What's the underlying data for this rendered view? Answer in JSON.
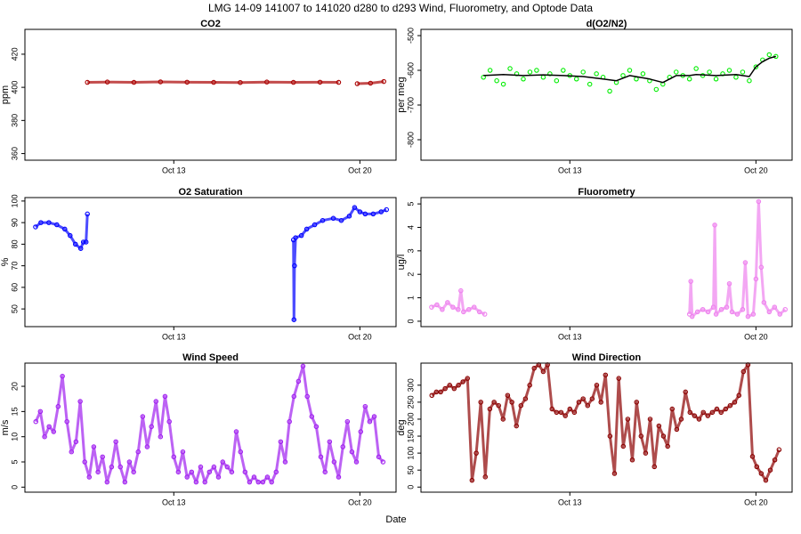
{
  "title": "LMG  14-09    141007 to 141020    d280 to d293   Wind, Fluorometry, and Optode Data",
  "x_label": "Date",
  "chart_data": [
    {
      "type": "scatter",
      "title": "CO2",
      "ylabel": "ppm",
      "xlim": [
        7.4,
        21.36
      ],
      "xticks": [
        {
          "value": 13,
          "label": "Oct 13"
        },
        {
          "value": 20,
          "label": "Oct 20"
        }
      ],
      "ylim": [
        356,
        435
      ],
      "yticks": [
        360,
        380,
        400,
        420
      ],
      "series": [
        {
          "color": "#aa0000",
          "style": "both",
          "x": [
            9.75,
            10.5,
            11.5,
            12.5,
            13.5,
            14.5,
            15.5,
            16.5,
            17.5,
            18.5,
            19.2,
            19.5,
            19.9,
            20.4,
            20.9
          ],
          "values": [
            403,
            403.2,
            403,
            403.3,
            403.1,
            403,
            402.9,
            403.2,
            403,
            403.1,
            403,
            null,
            402.2,
            402.5,
            403.5
          ]
        }
      ]
    },
    {
      "type": "scatter",
      "title": "d(O2/N2)",
      "ylabel": "per meg",
      "xlim": [
        7.4,
        21.36
      ],
      "xticks": [
        {
          "value": 13,
          "label": "Oct 13"
        },
        {
          "value": 20,
          "label": "Oct 20"
        }
      ],
      "ylim": [
        -859,
        -482
      ],
      "yticks": [
        -800,
        -700,
        -600,
        -500
      ],
      "series": [
        {
          "color": "#00ee00",
          "style": "points",
          "x": [
            9.75,
            10.0,
            10.25,
            10.5,
            10.75,
            11.0,
            11.25,
            11.5,
            11.75,
            12.0,
            12.25,
            12.5,
            12.75,
            13.0,
            13.25,
            13.5,
            13.75,
            14.0,
            14.25,
            14.5,
            14.75,
            15.0,
            15.25,
            15.5,
            15.75,
            16.0,
            16.25,
            16.5,
            16.75,
            17.0,
            17.25,
            17.5,
            17.75,
            18.0,
            18.25,
            18.5,
            18.75,
            19.0,
            19.25,
            19.5,
            19.75,
            20.0,
            20.25,
            20.5,
            20.75
          ],
          "values": [
            -620,
            -600,
            -630,
            -640,
            -595,
            -610,
            -625,
            -605,
            -600,
            -620,
            -610,
            -630,
            -600,
            -615,
            -625,
            -605,
            -640,
            -610,
            -620,
            -660,
            -635,
            -615,
            -600,
            -625,
            -610,
            -630,
            -655,
            -640,
            -620,
            -605,
            -615,
            -625,
            -595,
            -615,
            -605,
            -625,
            -610,
            -600,
            -620,
            -605,
            -630,
            -590,
            -570,
            -555,
            -560
          ]
        },
        {
          "color": "#000000",
          "style": "line",
          "x": [
            9.75,
            10.5,
            11.25,
            12.0,
            12.75,
            13.5,
            14.25,
            14.75,
            15.25,
            16.0,
            16.5,
            17.0,
            17.5,
            17.75,
            18.5,
            19.25,
            19.75,
            20.0,
            20.25,
            20.5,
            20.75
          ],
          "values": [
            -615,
            -612,
            -615,
            -613,
            -615,
            -618,
            -625,
            -630,
            -615,
            -625,
            -635,
            -615,
            -615,
            -612,
            -615,
            -612,
            -618,
            -590,
            -575,
            -565,
            -560
          ]
        }
      ]
    },
    {
      "type": "scatter",
      "title": "O2 Saturation",
      "ylabel": "%",
      "xlim": [
        7.4,
        21.36
      ],
      "xticks": [
        {
          "value": 13,
          "label": "Oct 13"
        },
        {
          "value": 20,
          "label": "Oct 20"
        }
      ],
      "ylim": [
        41.8,
        101.6
      ],
      "yticks": [
        50,
        60,
        70,
        80,
        90,
        100
      ],
      "series": [
        {
          "color": "#0000ff",
          "style": "both",
          "x": [
            7.8,
            8.0,
            8.3,
            8.6,
            8.9,
            9.1,
            9.3,
            9.5,
            9.6,
            9.7,
            9.75,
            13,
            17.5,
            17.52,
            17.54,
            17.58,
            17.8,
            18.0,
            18.3,
            18.6,
            19.0,
            19.3,
            19.6,
            19.8,
            20.0,
            20.2,
            20.5,
            20.8,
            21.0
          ],
          "values": [
            88,
            90,
            90,
            89,
            87,
            84,
            80,
            78,
            81,
            81,
            94,
            null,
            82,
            45,
            70,
            83,
            84,
            87,
            89,
            91,
            92,
            91,
            93,
            97,
            95,
            94,
            94,
            95,
            96
          ]
        }
      ]
    },
    {
      "type": "scatter",
      "title": "Fluorometry",
      "ylabel": "ug/l",
      "xlim": [
        7.4,
        21.36
      ],
      "xticks": [
        {
          "value": 13,
          "label": "Oct 13"
        },
        {
          "value": 20,
          "label": "Oct 20"
        }
      ],
      "ylim": [
        -0.23,
        5.27
      ],
      "yticks": [
        0,
        1,
        2,
        3,
        4,
        5
      ],
      "series": [
        {
          "color": "#ee82ee",
          "style": "both",
          "x": [
            7.8,
            8.0,
            8.2,
            8.4,
            8.6,
            8.8,
            8.9,
            9.0,
            9.2,
            9.4,
            9.6,
            9.8,
            13.5,
            17.5,
            17.55,
            17.6,
            17.8,
            18.0,
            18.2,
            18.4,
            18.45,
            18.5,
            18.7,
            18.9,
            19.0,
            19.1,
            19.3,
            19.5,
            19.6,
            19.7,
            19.9,
            20.0,
            20.1,
            20.2,
            20.3,
            20.5,
            20.7,
            20.9,
            21.1
          ],
          "values": [
            0.6,
            0.7,
            0.5,
            0.8,
            0.6,
            0.5,
            1.3,
            0.4,
            0.5,
            0.6,
            0.4,
            0.3,
            null,
            0.3,
            1.7,
            0.2,
            0.4,
            0.5,
            0.4,
            0.6,
            4.1,
            0.3,
            0.5,
            0.6,
            1.6,
            0.4,
            0.3,
            0.5,
            2.5,
            0.2,
            0.3,
            1.8,
            5.1,
            2.3,
            0.8,
            0.4,
            0.6,
            0.3,
            0.5
          ]
        }
      ]
    },
    {
      "type": "scatter",
      "title": "Wind Speed",
      "ylabel": "m/s",
      "xlim": [
        7.4,
        21.36
      ],
      "xticks": [
        {
          "value": 13,
          "label": "Oct 13"
        },
        {
          "value": 20,
          "label": "Oct 20"
        }
      ],
      "ylim": [
        -1,
        24.6
      ],
      "yticks": [
        0,
        5,
        10,
        15,
        20
      ],
      "series": [
        {
          "color": "#a020f0",
          "style": "both",
          "x": [
            7.81,
            7.98,
            8.14,
            8.31,
            8.48,
            8.65,
            8.81,
            8.98,
            9.15,
            9.32,
            9.48,
            9.65,
            9.82,
            9.99,
            10.15,
            10.32,
            10.49,
            10.66,
            10.82,
            10.99,
            11.16,
            11.33,
            11.49,
            11.66,
            11.83,
            12.0,
            12.16,
            12.33,
            12.5,
            12.67,
            12.83,
            13.0,
            13.17,
            13.34,
            13.5,
            13.67,
            13.84,
            14.01,
            14.17,
            14.34,
            14.51,
            14.68,
            14.84,
            15.01,
            15.18,
            15.35,
            15.51,
            15.68,
            15.85,
            16.02,
            16.18,
            16.35,
            16.52,
            16.68,
            16.85,
            17.02,
            17.19,
            17.35,
            17.52,
            17.69,
            17.86,
            18.02,
            18.19,
            18.36,
            18.53,
            18.69,
            18.86,
            19.03,
            19.2,
            19.36,
            19.53,
            19.7,
            19.87,
            20.03,
            20.2,
            20.37,
            20.54,
            20.71,
            20.87
          ],
          "values": [
            13,
            15,
            10,
            12,
            11,
            16,
            22,
            13,
            7,
            9,
            17,
            5,
            2,
            8,
            3,
            6,
            1,
            4,
            9,
            4,
            1,
            5,
            3,
            7,
            14,
            8,
            12,
            17,
            10,
            18,
            13,
            6,
            3,
            7,
            2,
            3,
            1,
            4,
            1,
            3,
            4,
            2,
            5,
            4,
            3,
            11,
            7,
            3,
            1,
            2,
            1,
            1,
            2,
            1,
            3,
            9,
            5,
            13,
            18,
            21,
            24,
            18,
            14,
            12,
            6,
            3,
            9,
            5,
            2,
            8,
            13,
            7,
            5,
            11,
            16,
            13,
            14,
            6,
            5
          ]
        }
      ]
    },
    {
      "type": "scatter",
      "title": "Wind Direction",
      "ylabel": "deg",
      "xlim": [
        7.4,
        21.36
      ],
      "xticks": [
        {
          "value": 13,
          "label": "Oct 13"
        },
        {
          "value": 20,
          "label": "Oct 20"
        }
      ],
      "ylim": [
        -15,
        365
      ],
      "yticks": [
        0,
        50,
        100,
        150,
        200,
        250,
        300
      ],
      "series": [
        {
          "color": "#8b0000",
          "style": "both",
          "x": [
            7.81,
            7.98,
            8.14,
            8.31,
            8.48,
            8.65,
            8.81,
            8.98,
            9.15,
            9.32,
            9.48,
            9.65,
            9.82,
            9.99,
            10.15,
            10.32,
            10.49,
            10.66,
            10.82,
            10.99,
            11.16,
            11.33,
            11.49,
            11.66,
            11.83,
            12.0,
            12.16,
            12.33,
            12.5,
            12.67,
            12.83,
            13.0,
            13.17,
            13.34,
            13.5,
            13.67,
            13.84,
            14.01,
            14.17,
            14.34,
            14.51,
            14.68,
            14.84,
            15.01,
            15.18,
            15.35,
            15.51,
            15.68,
            15.85,
            16.02,
            16.18,
            16.35,
            16.52,
            16.68,
            16.85,
            17.02,
            17.19,
            17.35,
            17.52,
            17.69,
            17.86,
            18.02,
            18.19,
            18.36,
            18.53,
            18.69,
            18.86,
            19.03,
            19.2,
            19.36,
            19.53,
            19.7,
            19.87,
            20.03,
            20.2,
            20.37,
            20.54,
            20.71,
            20.87
          ],
          "values": [
            270,
            280,
            280,
            290,
            300,
            290,
            300,
            310,
            320,
            20,
            100,
            250,
            30,
            230,
            250,
            240,
            200,
            270,
            250,
            180,
            240,
            260,
            300,
            350,
            360,
            340,
            360,
            230,
            220,
            220,
            210,
            230,
            220,
            250,
            260,
            240,
            260,
            300,
            250,
            330,
            150,
            40,
            320,
            120,
            200,
            80,
            250,
            150,
            100,
            200,
            60,
            180,
            150,
            120,
            230,
            170,
            200,
            280,
            220,
            210,
            200,
            220,
            210,
            220,
            230,
            220,
            230,
            240,
            250,
            270,
            340,
            360,
            90,
            60,
            40,
            20,
            50,
            80,
            110
          ]
        }
      ]
    }
  ]
}
